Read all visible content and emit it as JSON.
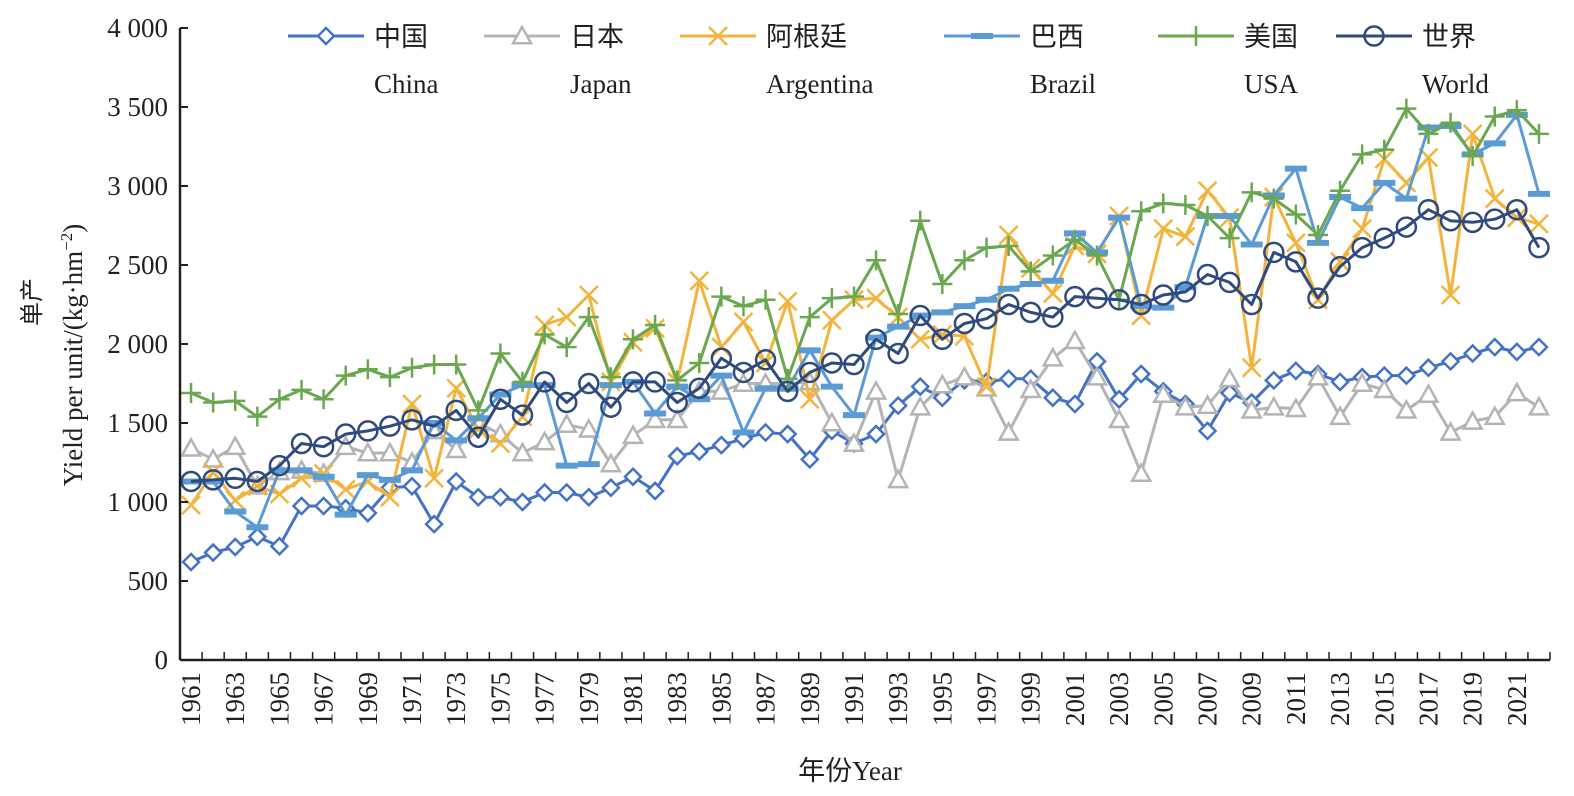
{
  "chart_data": {
    "type": "line",
    "title": "",
    "xlabel": "年份Year",
    "ylabel_cn": "单产",
    "ylabel_en": "Yield per unit/(kg·hm",
    "ylabel_sup": "−2",
    "ylabel_close": ")",
    "ylim": [
      0,
      4000
    ],
    "yticks": [
      0,
      500,
      1000,
      1500,
      2000,
      2500,
      3000,
      3500,
      4000
    ],
    "ytick_labels": [
      "0",
      "500",
      "1 000",
      "1 500",
      "2 000",
      "2 500",
      "3 000",
      "3 500",
      "4 000"
    ],
    "grid": false,
    "legend_position": "top",
    "x": [
      1961,
      1962,
      1963,
      1964,
      1965,
      1966,
      1967,
      1968,
      1969,
      1970,
      1971,
      1972,
      1973,
      1974,
      1975,
      1976,
      1977,
      1978,
      1979,
      1980,
      1981,
      1982,
      1983,
      1984,
      1985,
      1986,
      1987,
      1988,
      1989,
      1990,
      1991,
      1992,
      1993,
      1994,
      1995,
      1996,
      1997,
      1998,
      1999,
      2000,
      2001,
      2002,
      2003,
      2004,
      2005,
      2006,
      2007,
      2008,
      2009,
      2010,
      2011,
      2012,
      2013,
      2014,
      2015,
      2016,
      2017,
      2018,
      2019,
      2020,
      2021,
      2022
    ],
    "xtick_labels": [
      "1961",
      "1963",
      "1965",
      "1967",
      "1969",
      "1971",
      "1973",
      "1975",
      "1977",
      "1979",
      "1981",
      "1983",
      "1985",
      "1987",
      "1989",
      "1991",
      "1993",
      "1995",
      "1997",
      "1999",
      "2001",
      "2003",
      "2005",
      "2007",
      "2009",
      "2011",
      "2013",
      "2015",
      "2017",
      "2019",
      "2021"
    ],
    "series": [
      {
        "name_cn": "中国",
        "name_en": "China",
        "marker": "diamond",
        "color": "#4472c4",
        "values": [
          620,
          680,
          715,
          780,
          720,
          975,
          975,
          960,
          930,
          1090,
          1100,
          860,
          1130,
          1030,
          1030,
          1000,
          1060,
          1060,
          1030,
          1090,
          1160,
          1070,
          1290,
          1320,
          1360,
          1400,
          1440,
          1430,
          1270,
          1450,
          1370,
          1430,
          1610,
          1730,
          1660,
          1770,
          1760,
          1780,
          1780,
          1660,
          1620,
          1890,
          1650,
          1810,
          1700,
          1620,
          1450,
          1690,
          1630,
          1770,
          1830,
          1810,
          1760,
          1790,
          1800,
          1800,
          1850,
          1890,
          1940,
          1980,
          1950,
          1980
        ]
      },
      {
        "name_cn": "日本",
        "name_en": "Japan",
        "marker": "triangle",
        "color": "#b4b4b4",
        "values": [
          1340,
          1270,
          1350,
          1100,
          1190,
          1200,
          1180,
          1350,
          1310,
          1310,
          1250,
          1450,
          1330,
          1500,
          1430,
          1310,
          1380,
          1490,
          1460,
          1240,
          1420,
          1520,
          1520,
          1700,
          1700,
          1750,
          1750,
          1750,
          1760,
          1500,
          1370,
          1700,
          1140,
          1600,
          1740,
          1790,
          1720,
          1440,
          1710,
          1910,
          2020,
          1790,
          1520,
          1180,
          1680,
          1600,
          1610,
          1780,
          1580,
          1600,
          1590,
          1790,
          1540,
          1750,
          1710,
          1580,
          1680,
          1440,
          1510,
          1540,
          1690,
          1600
        ]
      },
      {
        "name_cn": "阿根廷",
        "name_en": "Argentina",
        "marker": "x",
        "color": "#f2b43c",
        "values": [
          980,
          1190,
          1010,
          1100,
          1050,
          1150,
          1180,
          1080,
          1130,
          1030,
          1620,
          1150,
          1720,
          1460,
          1370,
          1540,
          2120,
          2170,
          2310,
          1760,
          2010,
          2100,
          1760,
          2400,
          1980,
          2140,
          1880,
          2270,
          1650,
          2150,
          2280,
          2290,
          2170,
          2030,
          2060,
          2050,
          1730,
          2690,
          2480,
          2320,
          2620,
          2570,
          2810,
          2180,
          2730,
          2680,
          2970,
          2800,
          1850,
          2930,
          2640,
          2280,
          2520,
          2730,
          3170,
          3020,
          3180,
          2310,
          3330,
          2920,
          2800,
          2760
        ]
      },
      {
        "name_cn": "巴西",
        "name_en": "Brazil",
        "marker": "dash",
        "color": "#5b9bd5",
        "values": [
          1130,
          1130,
          940,
          840,
          1200,
          1200,
          1160,
          920,
          1170,
          1140,
          1200,
          1500,
          1390,
          1530,
          1680,
          1740,
          1740,
          1230,
          1240,
          1740,
          1760,
          1560,
          1730,
          1650,
          1800,
          1440,
          1720,
          1720,
          1960,
          1730,
          1550,
          2040,
          2110,
          2180,
          2200,
          2240,
          2280,
          2350,
          2380,
          2400,
          2700,
          2580,
          2800,
          2240,
          2230,
          2360,
          2810,
          2810,
          2630,
          2940,
          3110,
          2640,
          2930,
          2860,
          3020,
          2920,
          3370,
          3380,
          3200,
          3270,
          3450,
          2950
        ]
      },
      {
        "name_cn": "美国",
        "name_en": "USA",
        "marker": "plus",
        "color": "#6aa84f",
        "values": [
          1690,
          1630,
          1640,
          1540,
          1650,
          1710,
          1650,
          1800,
          1840,
          1790,
          1850,
          1870,
          1870,
          1580,
          1940,
          1760,
          2060,
          1980,
          2170,
          1790,
          2030,
          2120,
          1770,
          1880,
          2300,
          2240,
          2280,
          1780,
          2170,
          2290,
          2300,
          2530,
          2190,
          2780,
          2380,
          2530,
          2610,
          2620,
          2460,
          2560,
          2660,
          2560,
          2280,
          2840,
          2890,
          2880,
          2810,
          2670,
          2960,
          2920,
          2820,
          2690,
          2970,
          3200,
          3230,
          3490,
          3330,
          3400,
          3190,
          3440,
          3480,
          3330
        ]
      },
      {
        "name_cn": "世界",
        "name_en": "World",
        "marker": "circle",
        "color": "#2f4a7c",
        "values": [
          1130,
          1140,
          1150,
          1130,
          1230,
          1370,
          1350,
          1430,
          1450,
          1480,
          1520,
          1480,
          1580,
          1410,
          1650,
          1550,
          1760,
          1630,
          1750,
          1600,
          1760,
          1760,
          1630,
          1720,
          1910,
          1820,
          1900,
          1700,
          1820,
          1880,
          1870,
          2030,
          1940,
          2180,
          2030,
          2130,
          2160,
          2250,
          2200,
          2170,
          2300,
          2290,
          2280,
          2250,
          2310,
          2330,
          2440,
          2390,
          2250,
          2580,
          2520,
          2290,
          2490,
          2610,
          2670,
          2740,
          2850,
          2780,
          2770,
          2790,
          2850,
          2610
        ]
      }
    ]
  }
}
